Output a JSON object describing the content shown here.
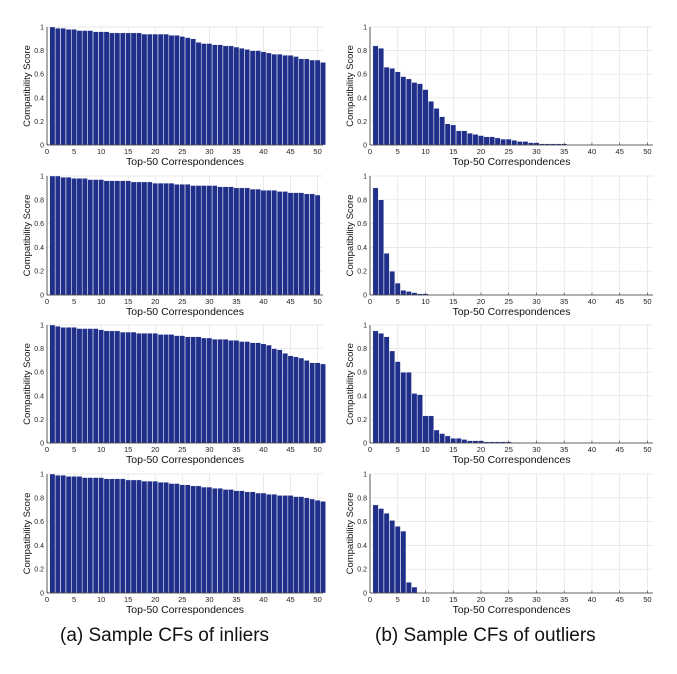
{
  "colors": {
    "bar": "#1f2f8a",
    "grid": "#e2e2e2",
    "axis": "#333333"
  },
  "captions": {
    "left": "(a) Sample CFs of inliers",
    "right": "(b) Sample CFs of outliers"
  },
  "chart_data": [
    {
      "type": "bar",
      "column": "inliers",
      "row": 1,
      "xlabel": "Top-50 Correspondences",
      "ylabel": "Compatibility Score",
      "xlim": [
        0,
        51
      ],
      "ylim": [
        0,
        1
      ],
      "xticks": [
        0,
        5,
        10,
        15,
        20,
        25,
        30,
        35,
        40,
        45,
        50
      ],
      "yticks": [
        "0",
        "0.2",
        "0.4",
        "0.6",
        "0.8",
        "1"
      ],
      "grid": true,
      "values": [
        1.0,
        0.99,
        0.99,
        0.98,
        0.98,
        0.97,
        0.97,
        0.97,
        0.96,
        0.96,
        0.96,
        0.95,
        0.95,
        0.95,
        0.95,
        0.95,
        0.95,
        0.94,
        0.94,
        0.94,
        0.94,
        0.94,
        0.93,
        0.93,
        0.92,
        0.91,
        0.9,
        0.87,
        0.86,
        0.86,
        0.85,
        0.85,
        0.84,
        0.84,
        0.83,
        0.82,
        0.81,
        0.8,
        0.8,
        0.79,
        0.78,
        0.77,
        0.77,
        0.76,
        0.76,
        0.75,
        0.73,
        0.73,
        0.72,
        0.72,
        0.7
      ]
    },
    {
      "type": "bar",
      "column": "outliers",
      "row": 1,
      "xlabel": "Top-50 Correspondences",
      "ylabel": "Compatibility Score",
      "xlim": [
        0,
        51
      ],
      "ylim": [
        0,
        1
      ],
      "xticks": [
        0,
        5,
        10,
        15,
        20,
        25,
        30,
        35,
        40,
        45,
        50
      ],
      "yticks": [
        "0",
        "0.2",
        "0.4",
        "0.6",
        "0.8",
        "1"
      ],
      "grid": true,
      "values": [
        0.84,
        0.82,
        0.66,
        0.65,
        0.62,
        0.58,
        0.56,
        0.53,
        0.52,
        0.47,
        0.37,
        0.31,
        0.24,
        0.18,
        0.17,
        0.12,
        0.12,
        0.1,
        0.09,
        0.08,
        0.07,
        0.07,
        0.06,
        0.05,
        0.05,
        0.04,
        0.03,
        0.03,
        0.02,
        0.02,
        0.01,
        0.01,
        0.01,
        0.01,
        0.01,
        0,
        0,
        0,
        0,
        0,
        0,
        0,
        0,
        0,
        0,
        0,
        0,
        0,
        0,
        0
      ]
    },
    {
      "type": "bar",
      "column": "inliers",
      "row": 2,
      "xlabel": "Top-50 Correspondences",
      "ylabel": "Compatibility Score",
      "xlim": [
        0,
        51
      ],
      "ylim": [
        0,
        1
      ],
      "xticks": [
        0,
        5,
        10,
        15,
        20,
        25,
        30,
        35,
        40,
        45,
        50
      ],
      "yticks": [
        "0",
        "0.2",
        "0.4",
        "0.6",
        "0.8",
        "1"
      ],
      "grid": true,
      "values": [
        1.0,
        1.0,
        0.99,
        0.99,
        0.98,
        0.98,
        0.98,
        0.97,
        0.97,
        0.97,
        0.96,
        0.96,
        0.96,
        0.96,
        0.96,
        0.95,
        0.95,
        0.95,
        0.95,
        0.94,
        0.94,
        0.94,
        0.94,
        0.93,
        0.93,
        0.93,
        0.92,
        0.92,
        0.92,
        0.92,
        0.92,
        0.91,
        0.91,
        0.91,
        0.9,
        0.9,
        0.9,
        0.89,
        0.89,
        0.88,
        0.88,
        0.88,
        0.87,
        0.87,
        0.86,
        0.86,
        0.86,
        0.85,
        0.85,
        0.84
      ]
    },
    {
      "type": "bar",
      "column": "outliers",
      "row": 2,
      "xlabel": "Top-50 Correspondences",
      "ylabel": "Compatibility Score",
      "xlim": [
        0,
        51
      ],
      "ylim": [
        0,
        1
      ],
      "xticks": [
        0,
        5,
        10,
        15,
        20,
        25,
        30,
        35,
        40,
        45,
        50
      ],
      "yticks": [
        "0",
        "0.2",
        "0.4",
        "0.6",
        "0.8",
        "1"
      ],
      "grid": true,
      "values": [
        0.9,
        0.8,
        0.35,
        0.2,
        0.1,
        0.04,
        0.03,
        0.02,
        0.01,
        0.01,
        0,
        0,
        0,
        0,
        0,
        0,
        0,
        0,
        0,
        0,
        0,
        0,
        0,
        0,
        0,
        0,
        0,
        0,
        0,
        0,
        0,
        0,
        0,
        0,
        0,
        0,
        0,
        0,
        0,
        0,
        0,
        0,
        0,
        0,
        0,
        0,
        0,
        0,
        0,
        0
      ]
    },
    {
      "type": "bar",
      "column": "inliers",
      "row": 3,
      "xlabel": "Top-50 Correspondences",
      "ylabel": "Compatibility Score",
      "xlim": [
        0,
        51
      ],
      "ylim": [
        0,
        1
      ],
      "xticks": [
        0,
        5,
        10,
        15,
        20,
        25,
        30,
        35,
        40,
        45,
        50
      ],
      "yticks": [
        "0",
        "0.2",
        "0.4",
        "0.6",
        "0.8",
        "1"
      ],
      "grid": true,
      "values": [
        1.0,
        0.99,
        0.98,
        0.98,
        0.98,
        0.97,
        0.97,
        0.97,
        0.97,
        0.96,
        0.95,
        0.95,
        0.95,
        0.94,
        0.94,
        0.94,
        0.93,
        0.93,
        0.93,
        0.93,
        0.92,
        0.92,
        0.92,
        0.91,
        0.91,
        0.9,
        0.9,
        0.9,
        0.89,
        0.89,
        0.88,
        0.88,
        0.88,
        0.87,
        0.87,
        0.86,
        0.86,
        0.85,
        0.85,
        0.84,
        0.83,
        0.8,
        0.79,
        0.76,
        0.74,
        0.73,
        0.72,
        0.7,
        0.68,
        0.68,
        0.67
      ]
    },
    {
      "type": "bar",
      "column": "outliers",
      "row": 3,
      "xlabel": "Top-50 Correspondences",
      "ylabel": "Compatibility Score",
      "xlim": [
        0,
        51
      ],
      "ylim": [
        0,
        1
      ],
      "xticks": [
        0,
        5,
        10,
        15,
        20,
        25,
        30,
        35,
        40,
        45,
        50
      ],
      "yticks": [
        "0",
        "0.2",
        "0.4",
        "0.6",
        "0.8",
        "1"
      ],
      "grid": true,
      "values": [
        0.95,
        0.93,
        0.9,
        0.78,
        0.69,
        0.6,
        0.6,
        0.42,
        0.41,
        0.23,
        0.23,
        0.11,
        0.08,
        0.06,
        0.04,
        0.04,
        0.03,
        0.02,
        0.02,
        0.02,
        0.01,
        0.01,
        0.01,
        0.01,
        0.01,
        0,
        0,
        0,
        0,
        0,
        0,
        0,
        0,
        0,
        0,
        0,
        0,
        0,
        0,
        0,
        0,
        0,
        0,
        0,
        0,
        0,
        0,
        0,
        0,
        0
      ]
    },
    {
      "type": "bar",
      "column": "inliers",
      "row": 4,
      "xlabel": "Top-50 Correspondences",
      "ylabel": "Compatibility Score",
      "xlim": [
        0,
        51
      ],
      "ylim": [
        0,
        1
      ],
      "xticks": [
        0,
        5,
        10,
        15,
        20,
        25,
        30,
        35,
        40,
        45,
        50
      ],
      "yticks": [
        "0",
        "0.2",
        "0.4",
        "0.6",
        "0.8",
        "1"
      ],
      "grid": true,
      "values": [
        1.0,
        0.99,
        0.99,
        0.98,
        0.98,
        0.98,
        0.97,
        0.97,
        0.97,
        0.97,
        0.96,
        0.96,
        0.96,
        0.96,
        0.95,
        0.95,
        0.95,
        0.94,
        0.94,
        0.94,
        0.93,
        0.93,
        0.92,
        0.92,
        0.91,
        0.91,
        0.9,
        0.9,
        0.89,
        0.89,
        0.88,
        0.88,
        0.87,
        0.87,
        0.86,
        0.86,
        0.85,
        0.85,
        0.84,
        0.84,
        0.83,
        0.83,
        0.82,
        0.82,
        0.82,
        0.81,
        0.81,
        0.8,
        0.79,
        0.78,
        0.77
      ]
    },
    {
      "type": "bar",
      "column": "outliers",
      "row": 4,
      "xlabel": "Top-50 Correspondences",
      "ylabel": "Compatibility Score",
      "xlim": [
        0,
        51
      ],
      "ylim": [
        0,
        1
      ],
      "xticks": [
        0,
        5,
        10,
        15,
        20,
        25,
        30,
        35,
        40,
        45,
        50
      ],
      "yticks": [
        "0",
        "0.2",
        "0.4",
        "0.6",
        "0.8",
        "1"
      ],
      "grid": true,
      "values": [
        0.74,
        0.71,
        0.67,
        0.61,
        0.56,
        0.52,
        0.09,
        0.05,
        0,
        0,
        0,
        0,
        0,
        0,
        0,
        0,
        0,
        0,
        0,
        0,
        0,
        0,
        0,
        0,
        0,
        0,
        0,
        0,
        0,
        0,
        0,
        0,
        0,
        0,
        0,
        0,
        0,
        0,
        0,
        0,
        0,
        0,
        0,
        0,
        0,
        0,
        0,
        0,
        0,
        0
      ]
    }
  ]
}
